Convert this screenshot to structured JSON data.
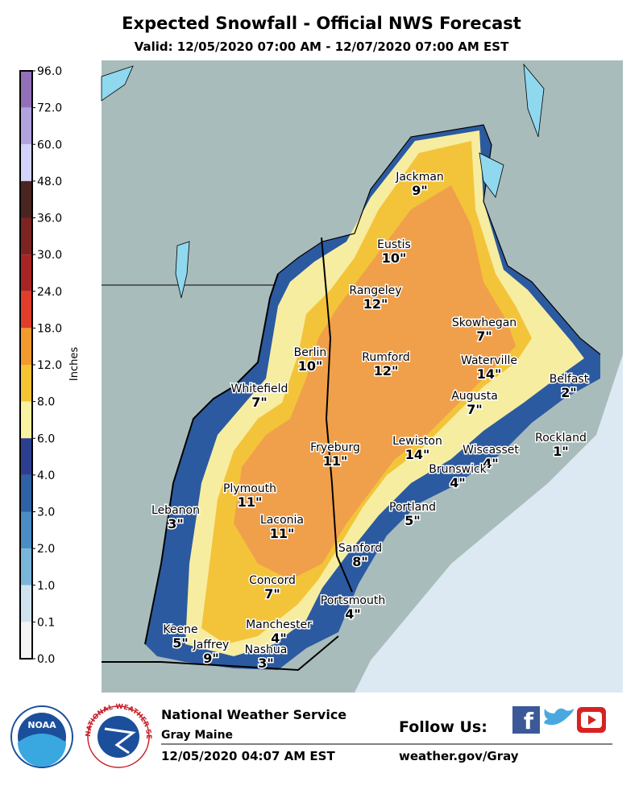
{
  "header": {
    "title": "Expected Snowfall - Official NWS Forecast",
    "subtitle": "Valid: 12/05/2020 07:00 AM - 12/07/2020 07:00 AM EST"
  },
  "legend": {
    "label": "Inches",
    "ticks": [
      "96.0",
      "72.0",
      "60.0",
      "48.0",
      "36.0",
      "30.0",
      "24.0",
      "18.0",
      "12.0",
      "8.0",
      "6.0",
      "4.0",
      "3.0",
      "2.0",
      "1.0",
      "0.1",
      "0.0"
    ],
    "colors": [
      "#9270b8",
      "#b2a2de",
      "#d2d2fa",
      "#4a2420",
      "#7c2422",
      "#a82424",
      "#e03e2a",
      "#f39a2c",
      "#f4c432",
      "#f8f2a2",
      "#2c3e90",
      "#2e62a4",
      "#4a8cc4",
      "#7ab6da",
      "#d0e2ee",
      "#f4f4f4"
    ]
  },
  "cities": [
    {
      "name": "Jackman",
      "amount": "9\""
    },
    {
      "name": "Eustis",
      "amount": "10\""
    },
    {
      "name": "Rangeley",
      "amount": "12\""
    },
    {
      "name": "Skowhegan",
      "amount": "7\""
    },
    {
      "name": "Berlin",
      "amount": "10\""
    },
    {
      "name": "Rumford",
      "amount": "12\""
    },
    {
      "name": "Waterville",
      "amount": "14\""
    },
    {
      "name": "Belfast",
      "amount": "2\""
    },
    {
      "name": "Whitefield",
      "amount": "7\""
    },
    {
      "name": "Augusta",
      "amount": "7\""
    },
    {
      "name": "Rockland",
      "amount": "1\""
    },
    {
      "name": "Fryeburg",
      "amount": "11\""
    },
    {
      "name": "Lewiston",
      "amount": "14\""
    },
    {
      "name": "Wiscasset",
      "amount": "4\""
    },
    {
      "name": "Brunswick",
      "amount": "4\""
    },
    {
      "name": "Plymouth",
      "amount": "11\""
    },
    {
      "name": "Portland",
      "amount": "5\""
    },
    {
      "name": "Lebanon",
      "amount": "3\""
    },
    {
      "name": "Laconia",
      "amount": "11\""
    },
    {
      "name": "Sanford",
      "amount": "8\""
    },
    {
      "name": "Concord",
      "amount": "7\""
    },
    {
      "name": "Portsmouth",
      "amount": "4\""
    },
    {
      "name": "Manchester",
      "amount": "4\""
    },
    {
      "name": "Keene",
      "amount": "5\""
    },
    {
      "name": "Jaffrey",
      "amount": "9\""
    },
    {
      "name": "Nashua",
      "amount": "3\""
    }
  ],
  "footer": {
    "office": "National Weather Service",
    "location": "Gray Maine",
    "issued": "12/05/2020 04:07 AM EST",
    "follow": "Follow Us:",
    "url": "weather.gov/Gray",
    "noaa": "NOAA",
    "nws": "NATIONAL WEATHER SERVICE"
  }
}
